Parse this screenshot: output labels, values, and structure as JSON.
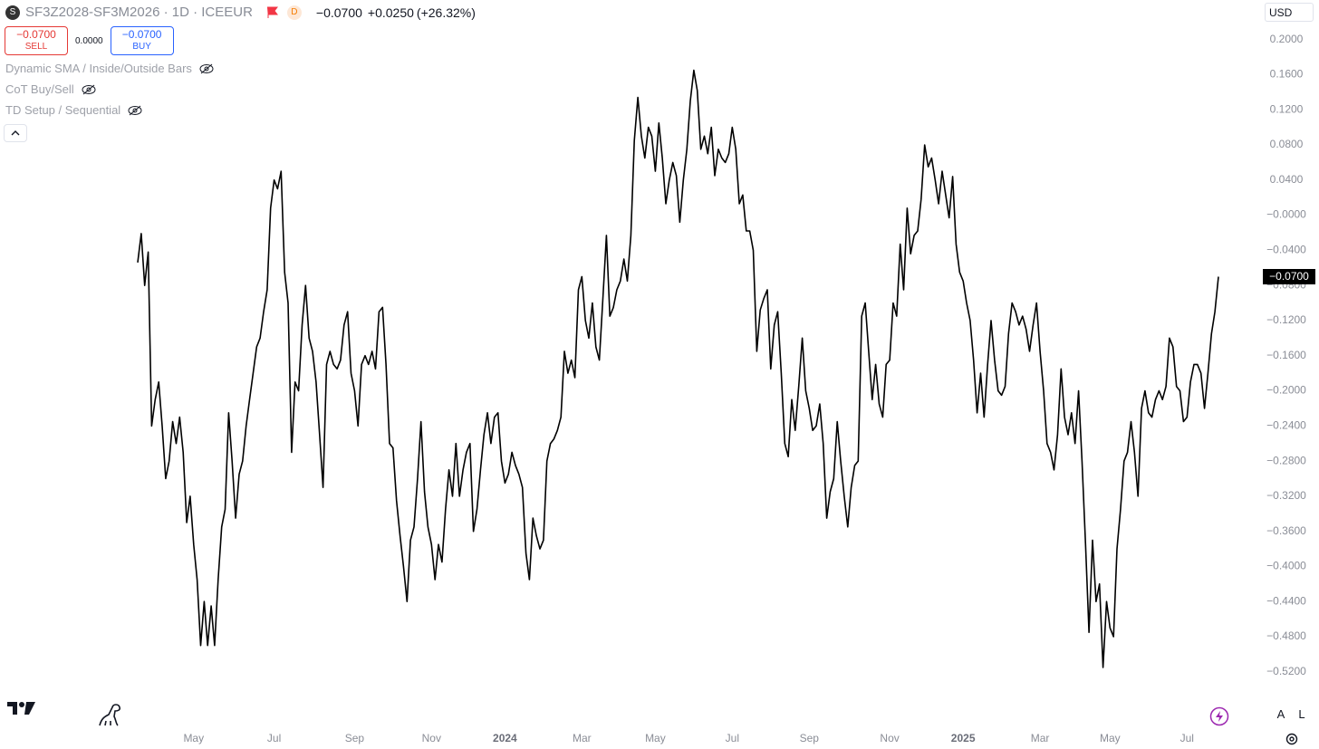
{
  "header": {
    "symbol_icon": "S",
    "symbol": "SF3Z2028-SF3M2026 · 1D · ICEEUR",
    "status": "D",
    "last": "−0.0700",
    "change": "+0.0250",
    "change_pct": "(+26.32%)",
    "sell_price": "−0.0700",
    "sell": "SELL",
    "spread": "0.0000",
    "buy_price": "−0.0700",
    "buy": "BUY",
    "indicators": [
      "Dynamic SMA / Inside/Outside Bars",
      "CoT Buy/Sell",
      "TD Setup / Sequential"
    ],
    "currency": "USD",
    "last_price": "−0.0700",
    "scale_auto": "A",
    "scale_log": "L"
  },
  "chart_data": {
    "type": "line",
    "color": "#000000",
    "grid": false,
    "values": [
      -0.054,
      -0.021,
      -0.08,
      -0.042,
      -0.24,
      -0.21,
      -0.19,
      -0.24,
      -0.3,
      -0.28,
      -0.235,
      -0.26,
      -0.23,
      -0.27,
      -0.35,
      -0.32,
      -0.375,
      -0.415,
      -0.49,
      -0.44,
      -0.49,
      -0.445,
      -0.49,
      -0.415,
      -0.355,
      -0.335,
      -0.225,
      -0.28,
      -0.345,
      -0.295,
      -0.28,
      -0.24,
      -0.21,
      -0.18,
      -0.15,
      -0.14,
      -0.11,
      -0.085,
      0.008,
      0.04,
      0.03,
      0.05,
      -0.065,
      -0.1,
      -0.27,
      -0.19,
      -0.2,
      -0.125,
      -0.08,
      -0.14,
      -0.155,
      -0.19,
      -0.25,
      -0.31,
      -0.17,
      -0.155,
      -0.17,
      -0.175,
      -0.165,
      -0.125,
      -0.11,
      -0.18,
      -0.2,
      -0.24,
      -0.17,
      -0.16,
      -0.17,
      -0.155,
      -0.175,
      -0.11,
      -0.105,
      -0.17,
      -0.26,
      -0.265,
      -0.325,
      -0.365,
      -0.4,
      -0.44,
      -0.37,
      -0.355,
      -0.3,
      -0.235,
      -0.315,
      -0.355,
      -0.375,
      -0.415,
      -0.375,
      -0.395,
      -0.335,
      -0.29,
      -0.32,
      -0.26,
      -0.32,
      -0.29,
      -0.27,
      -0.26,
      -0.36,
      -0.335,
      -0.29,
      -0.25,
      -0.225,
      -0.26,
      -0.23,
      -0.225,
      -0.28,
      -0.305,
      -0.295,
      -0.27,
      -0.285,
      -0.295,
      -0.31,
      -0.385,
      -0.415,
      -0.345,
      -0.365,
      -0.38,
      -0.37,
      -0.28,
      -0.26,
      -0.255,
      -0.245,
      -0.23,
      -0.155,
      -0.18,
      -0.165,
      -0.185,
      -0.085,
      -0.07,
      -0.12,
      -0.14,
      -0.1,
      -0.15,
      -0.165,
      -0.095,
      -0.023,
      -0.115,
      -0.105,
      -0.085,
      -0.075,
      -0.05,
      -0.075,
      -0.023,
      0.085,
      0.134,
      0.09,
      0.065,
      0.1,
      0.09,
      0.05,
      0.105,
      0.065,
      0.013,
      0.04,
      0.06,
      0.045,
      -0.008,
      0.04,
      0.075,
      0.13,
      0.165,
      0.142,
      0.075,
      0.09,
      0.07,
      0.1,
      0.045,
      0.075,
      0.065,
      0.06,
      0.07,
      0.1,
      0.075,
      0.013,
      0.023,
      -0.018,
      -0.018,
      -0.04,
      -0.155,
      -0.108,
      -0.095,
      -0.085,
      -0.175,
      -0.125,
      -0.11,
      -0.18,
      -0.26,
      -0.275,
      -0.21,
      -0.245,
      -0.195,
      -0.14,
      -0.2,
      -0.22,
      -0.245,
      -0.24,
      -0.215,
      -0.26,
      -0.345,
      -0.315,
      -0.3,
      -0.235,
      -0.28,
      -0.32,
      -0.355,
      -0.31,
      -0.285,
      -0.28,
      -0.115,
      -0.1,
      -0.155,
      -0.21,
      -0.17,
      -0.215,
      -0.23,
      -0.17,
      -0.165,
      -0.1,
      -0.115,
      -0.033,
      -0.085,
      0.008,
      -0.044,
      -0.023,
      -0.018,
      0.018,
      0.08,
      0.055,
      0.065,
      0.04,
      0.013,
      0.05,
      0.023,
      -0.003,
      0.044,
      -0.033,
      -0.065,
      -0.075,
      -0.1,
      -0.12,
      -0.165,
      -0.225,
      -0.18,
      -0.23,
      -0.17,
      -0.12,
      -0.165,
      -0.2,
      -0.205,
      -0.195,
      -0.135,
      -0.1,
      -0.11,
      -0.125,
      -0.115,
      -0.13,
      -0.155,
      -0.125,
      -0.1,
      -0.155,
      -0.2,
      -0.26,
      -0.27,
      -0.29,
      -0.25,
      -0.175,
      -0.23,
      -0.25,
      -0.225,
      -0.26,
      -0.2,
      -0.28,
      -0.375,
      -0.475,
      -0.37,
      -0.44,
      -0.42,
      -0.515,
      -0.44,
      -0.47,
      -0.48,
      -0.38,
      -0.335,
      -0.28,
      -0.27,
      -0.235,
      -0.27,
      -0.32,
      -0.22,
      -0.2,
      -0.225,
      -0.23,
      -0.21,
      -0.2,
      -0.21,
      -0.195,
      -0.14,
      -0.15,
      -0.195,
      -0.2,
      -0.235,
      -0.23,
      -0.19,
      -0.17,
      -0.17,
      -0.18,
      -0.22,
      -0.18,
      -0.135,
      -0.11,
      -0.07
    ],
    "xlim": [
      0,
      309
    ],
    "xticks": [
      {
        "value": 16,
        "label": "May"
      },
      {
        "value": 39,
        "label": "Jul"
      },
      {
        "value": 62,
        "label": "Sep"
      },
      {
        "value": 84,
        "label": "Nov"
      },
      {
        "value": 105,
        "label": "2024"
      },
      {
        "value": 127,
        "label": "Mar"
      },
      {
        "value": 148,
        "label": "May"
      },
      {
        "value": 170,
        "label": "Jul"
      },
      {
        "value": 192,
        "label": "Sep"
      },
      {
        "value": 215,
        "label": "Nov"
      },
      {
        "value": 236,
        "label": "2025"
      },
      {
        "value": 258,
        "label": "Mar"
      },
      {
        "value": 278,
        "label": "May"
      },
      {
        "value": 300,
        "label": "Jul"
      }
    ],
    "ylim": [
      -0.58,
      0.245
    ],
    "yticks": [
      {
        "value": 0.2,
        "label": "0.2000"
      },
      {
        "value": 0.16,
        "label": "0.1600"
      },
      {
        "value": 0.12,
        "label": "0.1200"
      },
      {
        "value": 0.08,
        "label": "0.0800"
      },
      {
        "value": 0.04,
        "label": "0.0400"
      },
      {
        "value": 0,
        "label": "−0.0000"
      },
      {
        "value": -0.04,
        "label": "−0.0400"
      },
      {
        "value": -0.08,
        "label": "−0.0800"
      },
      {
        "value": -0.12,
        "label": "−0.1200"
      },
      {
        "value": -0.16,
        "label": "−0.1600"
      },
      {
        "value": -0.2,
        "label": "−0.2000"
      },
      {
        "value": -0.24,
        "label": "−0.2400"
      },
      {
        "value": -0.28,
        "label": "−0.2800"
      },
      {
        "value": -0.32,
        "label": "−0.3200"
      },
      {
        "value": -0.36,
        "label": "−0.3600"
      },
      {
        "value": -0.4,
        "label": "−0.4000"
      },
      {
        "value": -0.44,
        "label": "−0.4400"
      },
      {
        "value": -0.48,
        "label": "−0.4800"
      },
      {
        "value": -0.52,
        "label": "−0.5200"
      }
    ]
  }
}
